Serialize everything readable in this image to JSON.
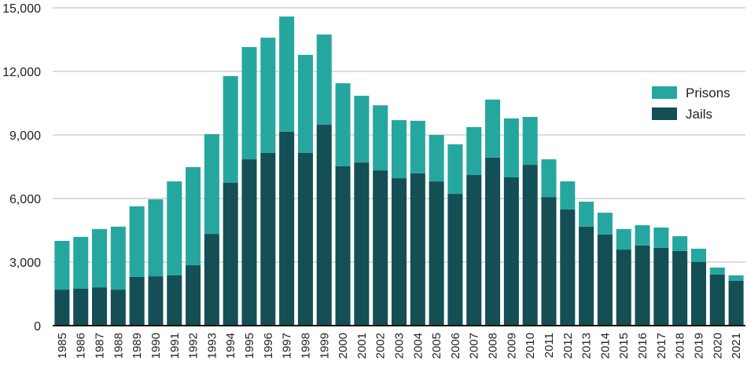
{
  "chart_data": {
    "type": "bar",
    "stacked": true,
    "title": "",
    "xlabel": "",
    "ylabel": "",
    "ylim": [
      0,
      15000
    ],
    "yticks": [
      0,
      3000,
      6000,
      9000,
      12000,
      15000
    ],
    "ytick_labels": [
      "0",
      "3,000",
      "6,000",
      "9,000",
      "12,000",
      "15,000"
    ],
    "grid": true,
    "legend_position": "right",
    "categories": [
      "1985",
      "1986",
      "1987",
      "1988",
      "1989",
      "1990",
      "1991",
      "1992",
      "1993",
      "1994",
      "1995",
      "1996",
      "1997",
      "1998",
      "1999",
      "2000",
      "2001",
      "2002",
      "2003",
      "2004",
      "2005",
      "2006",
      "2007",
      "2008",
      "2009",
      "2010",
      "2011",
      "2012",
      "2013",
      "2014",
      "2015",
      "2016",
      "2017",
      "2018",
      "2019",
      "2020",
      "2021"
    ],
    "series": [
      {
        "name": "Jails",
        "color": "#134f55",
        "values": [
          1700,
          1740,
          1810,
          1700,
          2300,
          2330,
          2370,
          2850,
          4330,
          6740,
          7850,
          8150,
          9150,
          8150,
          9480,
          7520,
          7700,
          7330,
          6960,
          7190,
          6810,
          6220,
          7110,
          7930,
          7000,
          7590,
          6070,
          5480,
          4670,
          4300,
          3590,
          3780,
          3670,
          3520,
          3000,
          2410,
          2110
        ]
      },
      {
        "name": "Prisons",
        "color": "#25a79f",
        "values": [
          2300,
          2450,
          2750,
          2970,
          3330,
          3630,
          4440,
          4630,
          4710,
          5040,
          5300,
          5440,
          5440,
          4630,
          4260,
          3920,
          3150,
          3070,
          2740,
          2480,
          2190,
          2340,
          2260,
          2740,
          2780,
          2260,
          1780,
          1330,
          1180,
          1030,
          970,
          960,
          960,
          700,
          630,
          330,
          260
        ]
      }
    ]
  }
}
